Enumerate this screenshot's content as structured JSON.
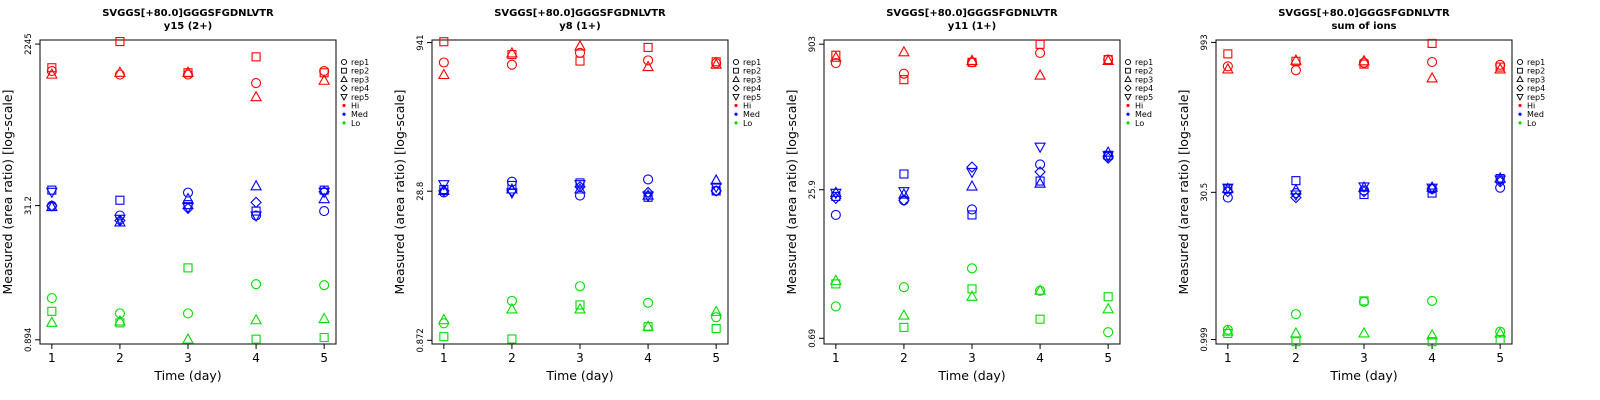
{
  "colors": {
    "Hi": "#ff0000",
    "Med": "#0000ff",
    "Lo": "#00dd00"
  },
  "legend": {
    "items": [
      {
        "label": "rep1",
        "symbol": "circle"
      },
      {
        "label": "rep2",
        "symbol": "square"
      },
      {
        "label": "rep3",
        "symbol": "triangle-up"
      },
      {
        "label": "rep4",
        "symbol": "diamond"
      },
      {
        "label": "rep5",
        "symbol": "triangle-down"
      },
      {
        "label": "Hi",
        "symbol": "dot",
        "color": "#ff0000"
      },
      {
        "label": "Med",
        "symbol": "dot",
        "color": "#0000ff"
      },
      {
        "label": "Lo",
        "symbol": "dot",
        "color": "#00dd00"
      }
    ]
  },
  "chart_data": [
    {
      "type": "scatter",
      "scale_y": "log",
      "title": "SVGGS[+80.0]GGGSFGDNLVTR",
      "subtitle": "y15 (2+)",
      "xlabel": "Time (day)",
      "ylabel": "Measured (area ratio) [log-scale]",
      "x_ticks": [
        "1",
        "2",
        "3",
        "4",
        "5"
      ],
      "y_ticks": [
        "0.894",
        "31.2",
        "2245"
      ],
      "ylim": [
        0.8,
        2500
      ],
      "series": [
        {
          "group": "Hi",
          "rep": "rep1",
          "x": [
            1,
            2,
            3,
            4,
            5
          ],
          "y": [
            1100,
            1000,
            1000,
            800,
            1100
          ]
        },
        {
          "group": "Hi",
          "rep": "rep2",
          "x": [
            1,
            2,
            3,
            4,
            5
          ],
          "y": [
            1200,
            2400,
            1050,
            1600,
            1050
          ]
        },
        {
          "group": "Hi",
          "rep": "rep3",
          "x": [
            1,
            2,
            3,
            4,
            5
          ],
          "y": [
            1000,
            1050,
            1050,
            550,
            850
          ]
        },
        {
          "group": "Med",
          "rep": "rep1",
          "x": [
            1,
            2,
            3,
            4,
            5
          ],
          "y": [
            31,
            24,
            44,
            24,
            27
          ]
        },
        {
          "group": "Med",
          "rep": "rep2",
          "x": [
            1,
            2,
            3,
            4,
            5
          ],
          "y": [
            47,
            36,
            32,
            27,
            47
          ]
        },
        {
          "group": "Med",
          "rep": "rep3",
          "x": [
            1,
            2,
            3,
            4,
            5
          ],
          "y": [
            30,
            20,
            37,
            52,
            37
          ]
        },
        {
          "group": "Med",
          "rep": "rep4",
          "x": [
            1,
            2,
            3,
            4,
            5
          ],
          "y": [
            31,
            21,
            29,
            34,
            45
          ]
        },
        {
          "group": "Med",
          "rep": "rep5",
          "x": [
            1,
            2,
            3,
            4,
            5
          ],
          "y": [
            45,
            22,
            30,
            24,
            45
          ]
        },
        {
          "group": "Lo",
          "rep": "rep1",
          "x": [
            1,
            2,
            3,
            4,
            5
          ],
          "y": [
            2.7,
            1.8,
            1.8,
            3.9,
            3.8
          ]
        },
        {
          "group": "Lo",
          "rep": "rep2",
          "x": [
            1,
            2,
            3,
            4,
            5
          ],
          "y": [
            1.9,
            1.4,
            6.0,
            0.91,
            0.95
          ]
        },
        {
          "group": "Lo",
          "rep": "rep3",
          "x": [
            1,
            2,
            3,
            4,
            5
          ],
          "y": [
            1.4,
            1.45,
            0.9,
            1.5,
            1.55
          ]
        }
      ]
    },
    {
      "type": "scatter",
      "scale_y": "log",
      "title": "SVGGS[+80.0]GGGSFGDNLVTR",
      "subtitle": "y8 (1+)",
      "xlabel": "Time (day)",
      "ylabel": "Measured (area ratio) [log-scale]",
      "x_ticks": [
        "1",
        "2",
        "3",
        "4",
        "5"
      ],
      "y_ticks": [
        "0.872",
        "28.8",
        "941"
      ],
      "ylim": [
        0.8,
        1000
      ],
      "series": [
        {
          "group": "Hi",
          "rep": "rep1",
          "x": [
            1,
            2,
            3,
            4,
            5
          ],
          "y": [
            590,
            560,
            740,
            620,
            580
          ]
        },
        {
          "group": "Hi",
          "rep": "rep2",
          "x": [
            1,
            2,
            3,
            4,
            5
          ],
          "y": [
            960,
            710,
            610,
            840,
            600
          ]
        },
        {
          "group": "Hi",
          "rep": "rep3",
          "x": [
            1,
            2,
            3,
            4,
            5
          ],
          "y": [
            440,
            730,
            860,
            530,
            560
          ]
        },
        {
          "group": "Med",
          "rep": "rep1",
          "x": [
            1,
            2,
            3,
            4,
            5
          ],
          "y": [
            28,
            36,
            26,
            38,
            29
          ]
        },
        {
          "group": "Med",
          "rep": "rep2",
          "x": [
            1,
            2,
            3,
            4,
            5
          ],
          "y": [
            30,
            33,
            35,
            25,
            29
          ]
        },
        {
          "group": "Med",
          "rep": "rep3",
          "x": [
            1,
            2,
            3,
            4,
            5
          ],
          "y": [
            29,
            30,
            30,
            26,
            37
          ]
        },
        {
          "group": "Med",
          "rep": "rep4",
          "x": [
            1,
            2,
            3,
            4,
            5
          ],
          "y": [
            29,
            29,
            32,
            28,
            29
          ]
        },
        {
          "group": "Med",
          "rep": "rep5",
          "x": [
            1,
            2,
            3,
            4,
            5
          ],
          "y": [
            34,
            28,
            34,
            26,
            32
          ]
        },
        {
          "group": "Lo",
          "rep": "rep1",
          "x": [
            1,
            2,
            3,
            4,
            5
          ],
          "y": [
            1.3,
            2.2,
            3.1,
            2.1,
            1.5
          ]
        },
        {
          "group": "Lo",
          "rep": "rep2",
          "x": [
            1,
            2,
            3,
            4,
            5
          ],
          "y": [
            0.95,
            0.9,
            2.0,
            1.2,
            1.15
          ]
        },
        {
          "group": "Lo",
          "rep": "rep3",
          "x": [
            1,
            2,
            3,
            4,
            5
          ],
          "y": [
            1.4,
            1.8,
            1.8,
            1.2,
            1.7
          ]
        }
      ]
    },
    {
      "type": "scatter",
      "scale_y": "log",
      "title": "SVGGS[+80.0]GGGSFGDNLVTR",
      "subtitle": "y11 (1+)",
      "xlabel": "Time (day)",
      "ylabel": "Measured (area ratio) [log-scale]",
      "x_ticks": [
        "1",
        "2",
        "3",
        "4",
        "5"
      ],
      "y_ticks": [
        "0.69",
        "25.9",
        "903"
      ],
      "ylim": [
        0.6,
        1000
      ],
      "series": [
        {
          "group": "Hi",
          "rep": "rep1",
          "x": [
            1,
            2,
            3,
            4,
            5
          ],
          "y": [
            570,
            440,
            580,
            730,
            620
          ]
        },
        {
          "group": "Hi",
          "rep": "rep2",
          "x": [
            1,
            2,
            3,
            4,
            5
          ],
          "y": [
            690,
            380,
            580,
            900,
            620
          ]
        },
        {
          "group": "Hi",
          "rep": "rep3",
          "x": [
            1,
            2,
            3,
            4,
            5
          ],
          "y": [
            650,
            740,
            600,
            420,
            600
          ]
        },
        {
          "group": "Med",
          "rep": "rep1",
          "x": [
            1,
            2,
            3,
            4,
            5
          ],
          "y": [
            14,
            20,
            16,
            48,
            58
          ]
        },
        {
          "group": "Med",
          "rep": "rep2",
          "x": [
            1,
            2,
            3,
            4,
            5
          ],
          "y": [
            22,
            38,
            14,
            32,
            60
          ]
        },
        {
          "group": "Med",
          "rep": "rep3",
          "x": [
            1,
            2,
            3,
            4,
            5
          ],
          "y": [
            24,
            23,
            28,
            30,
            64
          ]
        },
        {
          "group": "Med",
          "rep": "rep4",
          "x": [
            1,
            2,
            3,
            4,
            5
          ],
          "y": [
            21,
            20,
            45,
            40,
            56
          ]
        },
        {
          "group": "Med",
          "rep": "rep5",
          "x": [
            1,
            2,
            3,
            4,
            5
          ],
          "y": [
            24,
            25,
            40,
            74,
            60
          ]
        },
        {
          "group": "Lo",
          "rep": "rep1",
          "x": [
            1,
            2,
            3,
            4,
            5
          ],
          "y": [
            1.5,
            2.4,
            3.8,
            2.2,
            0.8
          ]
        },
        {
          "group": "Lo",
          "rep": "rep2",
          "x": [
            1,
            2,
            3,
            4,
            5
          ],
          "y": [
            2.6,
            0.9,
            2.3,
            1.1,
            1.9
          ]
        },
        {
          "group": "Lo",
          "rep": "rep3",
          "x": [
            1,
            2,
            3,
            4,
            5
          ],
          "y": [
            2.8,
            1.2,
            1.9,
            2.2,
            1.4
          ]
        }
      ]
    },
    {
      "type": "scatter",
      "scale_y": "log",
      "title": "SVGGS[+80.0]GGGSFGDNLVTR",
      "subtitle": "sum of ions",
      "xlabel": "Time (day)",
      "ylabel": "Measured (area ratio) [log-scale]",
      "x_ticks": [
        "1",
        "2",
        "3",
        "4",
        "5"
      ],
      "y_ticks": [
        "0.999",
        "30.5",
        "993"
      ],
      "ylim": [
        0.9,
        1050
      ],
      "series": [
        {
          "group": "Hi",
          "rep": "rep1",
          "x": [
            1,
            2,
            3,
            4,
            5
          ],
          "y": [
            570,
            520,
            620,
            630,
            590
          ]
        },
        {
          "group": "Hi",
          "rep": "rep2",
          "x": [
            1,
            2,
            3,
            4,
            5
          ],
          "y": [
            760,
            640,
            600,
            970,
            560
          ]
        },
        {
          "group": "Hi",
          "rep": "rep3",
          "x": [
            1,
            2,
            3,
            4,
            5
          ],
          "y": [
            530,
            650,
            640,
            430,
            530
          ]
        },
        {
          "group": "Med",
          "rep": "rep1",
          "x": [
            1,
            2,
            3,
            4,
            5
          ],
          "y": [
            27,
            30,
            32,
            33,
            34
          ]
        },
        {
          "group": "Med",
          "rep": "rep2",
          "x": [
            1,
            2,
            3,
            4,
            5
          ],
          "y": [
            33,
            40,
            29,
            30,
            42
          ]
        },
        {
          "group": "Med",
          "rep": "rep3",
          "x": [
            1,
            2,
            3,
            4,
            5
          ],
          "y": [
            33,
            32,
            34,
            34,
            42
          ]
        },
        {
          "group": "Med",
          "rep": "rep4",
          "x": [
            1,
            2,
            3,
            4,
            5
          ],
          "y": [
            31,
            27,
            31,
            33,
            39
          ]
        },
        {
          "group": "Med",
          "rep": "rep5",
          "x": [
            1,
            2,
            3,
            4,
            5
          ],
          "y": [
            34,
            29,
            35,
            34,
            41
          ]
        },
        {
          "group": "Lo",
          "rep": "rep1",
          "x": [
            1,
            2,
            3,
            4,
            5
          ],
          "y": [
            1.25,
            1.8,
            2.4,
            2.45,
            1.2
          ]
        },
        {
          "group": "Lo",
          "rep": "rep2",
          "x": [
            1,
            2,
            3,
            4,
            5
          ],
          "y": [
            1.15,
            0.95,
            2.45,
            0.95,
            1.0
          ]
        },
        {
          "group": "Lo",
          "rep": "rep3",
          "x": [
            1,
            2,
            3,
            4,
            5
          ],
          "y": [
            1.2,
            1.15,
            1.15,
            1.1,
            1.15
          ]
        }
      ]
    }
  ]
}
